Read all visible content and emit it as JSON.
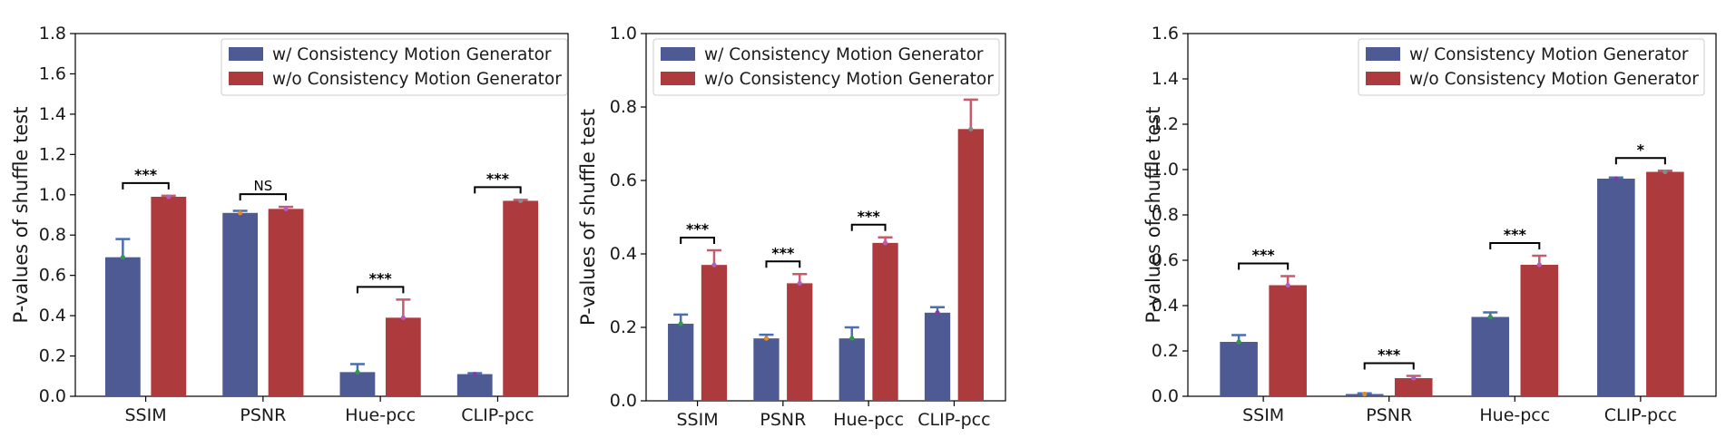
{
  "colors": {
    "with": "#4e5a94",
    "without": "#ad3a3c",
    "with_err": "#4a6fb0",
    "without_err": "#c85a6e",
    "dot_with": [
      "#2f9a4e",
      "#e08a2a",
      "#2f9a4e",
      "#7a3fa0"
    ],
    "dot_without": [
      "#b45fbd",
      "#b45fbd",
      "#b45fbd",
      "#8a8a8a"
    ]
  },
  "chart_data": [
    {
      "type": "bar",
      "title": "",
      "xlabel": "",
      "ylabel": "P-values of shuffle test",
      "ylim": [
        0,
        1.8
      ],
      "yticks": [
        "0.0",
        "0.2",
        "0.4",
        "0.6",
        "0.8",
        "1.0",
        "1.2",
        "1.4",
        "1.6",
        "1.8"
      ],
      "categories": [
        "SSIM",
        "PSNR",
        "Hue-pcc",
        "CLIP-pcc"
      ],
      "legend_position": "top-right",
      "series": [
        {
          "name": "w/ Consistency Motion Generator",
          "values": [
            0.69,
            0.91,
            0.12,
            0.11
          ],
          "errors": [
            0.09,
            0.01,
            0.04,
            0.005
          ]
        },
        {
          "name": "w/o Consistency Motion Generator",
          "values": [
            0.99,
            0.93,
            0.39,
            0.97
          ],
          "errors": [
            0.005,
            0.01,
            0.09,
            0.005
          ]
        }
      ],
      "significance": [
        "***",
        "NS",
        "***",
        "***"
      ]
    },
    {
      "type": "bar",
      "title": "",
      "xlabel": "",
      "ylabel": "P-values of shuffle test",
      "ylim": [
        0,
        1.0
      ],
      "yticks": [
        "0.0",
        "0.2",
        "0.4",
        "0.6",
        "0.8",
        "1.0"
      ],
      "categories": [
        "SSIM",
        "PSNR",
        "Hue-pcc",
        "CLIP-pcc"
      ],
      "legend_position": "top-left",
      "series": [
        {
          "name": "w/ Consistency Motion Generator",
          "values": [
            0.21,
            0.17,
            0.17,
            0.24
          ],
          "errors": [
            0.025,
            0.01,
            0.03,
            0.015
          ]
        },
        {
          "name": "w/o Consistency Motion Generator",
          "values": [
            0.37,
            0.32,
            0.43,
            0.74
          ],
          "errors": [
            0.04,
            0.025,
            0.015,
            0.08
          ]
        }
      ],
      "significance": [
        "***",
        "***",
        "***",
        "***"
      ]
    },
    {
      "type": "bar",
      "title": "",
      "xlabel": "",
      "ylabel": "P-values of shuffle test",
      "ylim": [
        0,
        1.6
      ],
      "yticks": [
        "0.0",
        "0.2",
        "0.4",
        "0.6",
        "0.8",
        "1.0",
        "1.2",
        "1.4",
        "1.6"
      ],
      "categories": [
        "SSIM",
        "PSNR",
        "Hue-pcc",
        "CLIP-pcc"
      ],
      "legend_position": "top-right",
      "series": [
        {
          "name": "w/ Consistency Motion Generator",
          "values": [
            0.24,
            0.01,
            0.35,
            0.96
          ],
          "errors": [
            0.03,
            0.003,
            0.02,
            0.005
          ]
        },
        {
          "name": "w/o Consistency Motion Generator",
          "values": [
            0.49,
            0.08,
            0.58,
            0.99
          ],
          "errors": [
            0.04,
            0.01,
            0.04,
            0.005
          ]
        }
      ],
      "significance": [
        "***",
        "***",
        "***",
        "*"
      ]
    }
  ]
}
